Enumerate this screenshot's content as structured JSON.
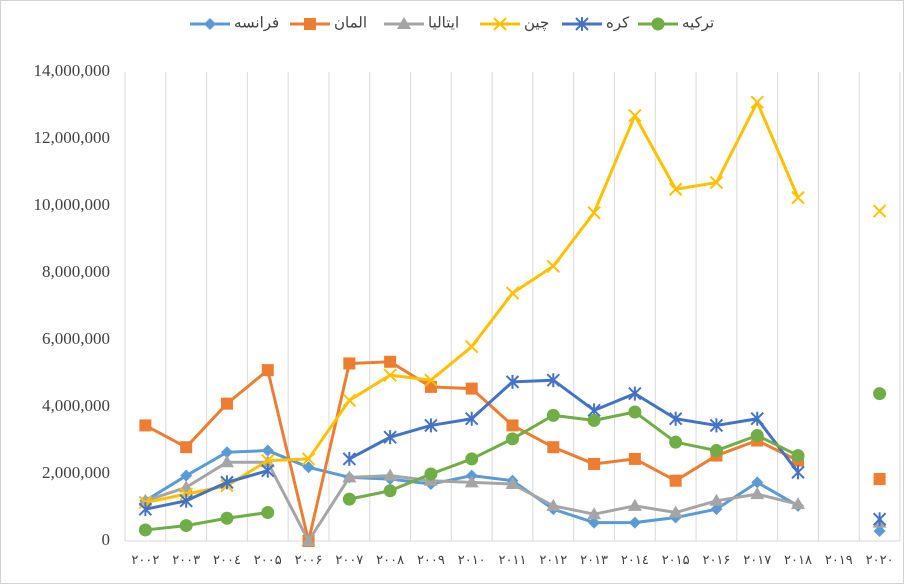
{
  "chart_data": {
    "type": "line",
    "categories": [
      "۲۰۰۲",
      "۲۰۰۳",
      "۲۰۰٤",
      "۲۰۰۵",
      "۲۰۰۶",
      "۲۰۰۷",
      "۲۰۰۸",
      "۲۰۰۹",
      "۲۰۱۰",
      "۲۰۱۱",
      "۲۰۱۲",
      "۲۰۱۳",
      "۲۰۱٤",
      "۲۰۱۵",
      "۲۰۱۶",
      "۲۰۱۷",
      "۲۰۱۸",
      "۲۰۱۹",
      "۲۰۲۰"
    ],
    "series": [
      {
        "name": "فرانسه",
        "color": "#5b9bd5",
        "marker": "diamond",
        "values": [
          1200000,
          1950000,
          2650000,
          2700000,
          2200000,
          1900000,
          1850000,
          1700000,
          1950000,
          1800000,
          950000,
          550000,
          550000,
          700000,
          950000,
          1750000,
          1050000,
          null,
          300000
        ]
      },
      {
        "name": "المان",
        "color": "#ed7d31",
        "marker": "square",
        "values": [
          3450000,
          2800000,
          4100000,
          5100000,
          0,
          5300000,
          5350000,
          4600000,
          4550000,
          3450000,
          2800000,
          2300000,
          2450000,
          1800000,
          2550000,
          3000000,
          2400000,
          null,
          1850000
        ]
      },
      {
        "name": "ایتالیا",
        "color": "#a5a5a5",
        "marker": "triangle",
        "values": [
          1200000,
          1600000,
          2350000,
          2350000,
          0,
          1900000,
          1950000,
          1800000,
          1750000,
          1700000,
          1050000,
          800000,
          1050000,
          850000,
          1200000,
          1400000,
          1100000,
          null,
          550000
        ]
      },
      {
        "name": "چین",
        "color": "#ffc000",
        "marker": "x",
        "values": [
          1150000,
          1400000,
          1650000,
          2400000,
          2450000,
          4200000,
          4950000,
          4800000,
          5800000,
          7400000,
          8200000,
          9800000,
          12700000,
          10500000,
          10700000,
          13100000,
          10250000,
          null,
          9850000
        ]
      },
      {
        "name": "کره",
        "color": "#4472c4",
        "marker": "star",
        "values": [
          950000,
          1200000,
          1750000,
          2100000,
          null,
          2450000,
          3100000,
          3450000,
          3650000,
          4750000,
          4800000,
          3900000,
          4400000,
          3650000,
          3450000,
          3650000,
          2050000,
          null,
          650000
        ]
      },
      {
        "name": "ترکیه",
        "color": "#70ad47",
        "marker": "circle",
        "values": [
          330000,
          460000,
          680000,
          850000,
          null,
          1250000,
          1500000,
          2000000,
          2450000,
          3050000,
          3750000,
          3600000,
          3850000,
          2950000,
          2700000,
          3150000,
          2550000,
          null,
          4400000
        ]
      }
    ],
    "ylim": [
      0,
      14000000
    ],
    "yticks": [
      0,
      {
        "value": 2000000,
        "label": "2,000,000"
      },
      {
        "value": 4000000,
        "label": "4,000,000"
      },
      {
        "value": 6000000,
        "label": "6,000,000"
      },
      {
        "value": 8000000,
        "label": "8,000,000"
      },
      {
        "value": 10000000,
        "label": "10,000,000"
      },
      {
        "value": 12000000,
        "label": "12,000,000"
      },
      {
        "value": 14000000,
        "label": "14,000,000"
      }
    ],
    "grid": "x",
    "legend": "top"
  }
}
